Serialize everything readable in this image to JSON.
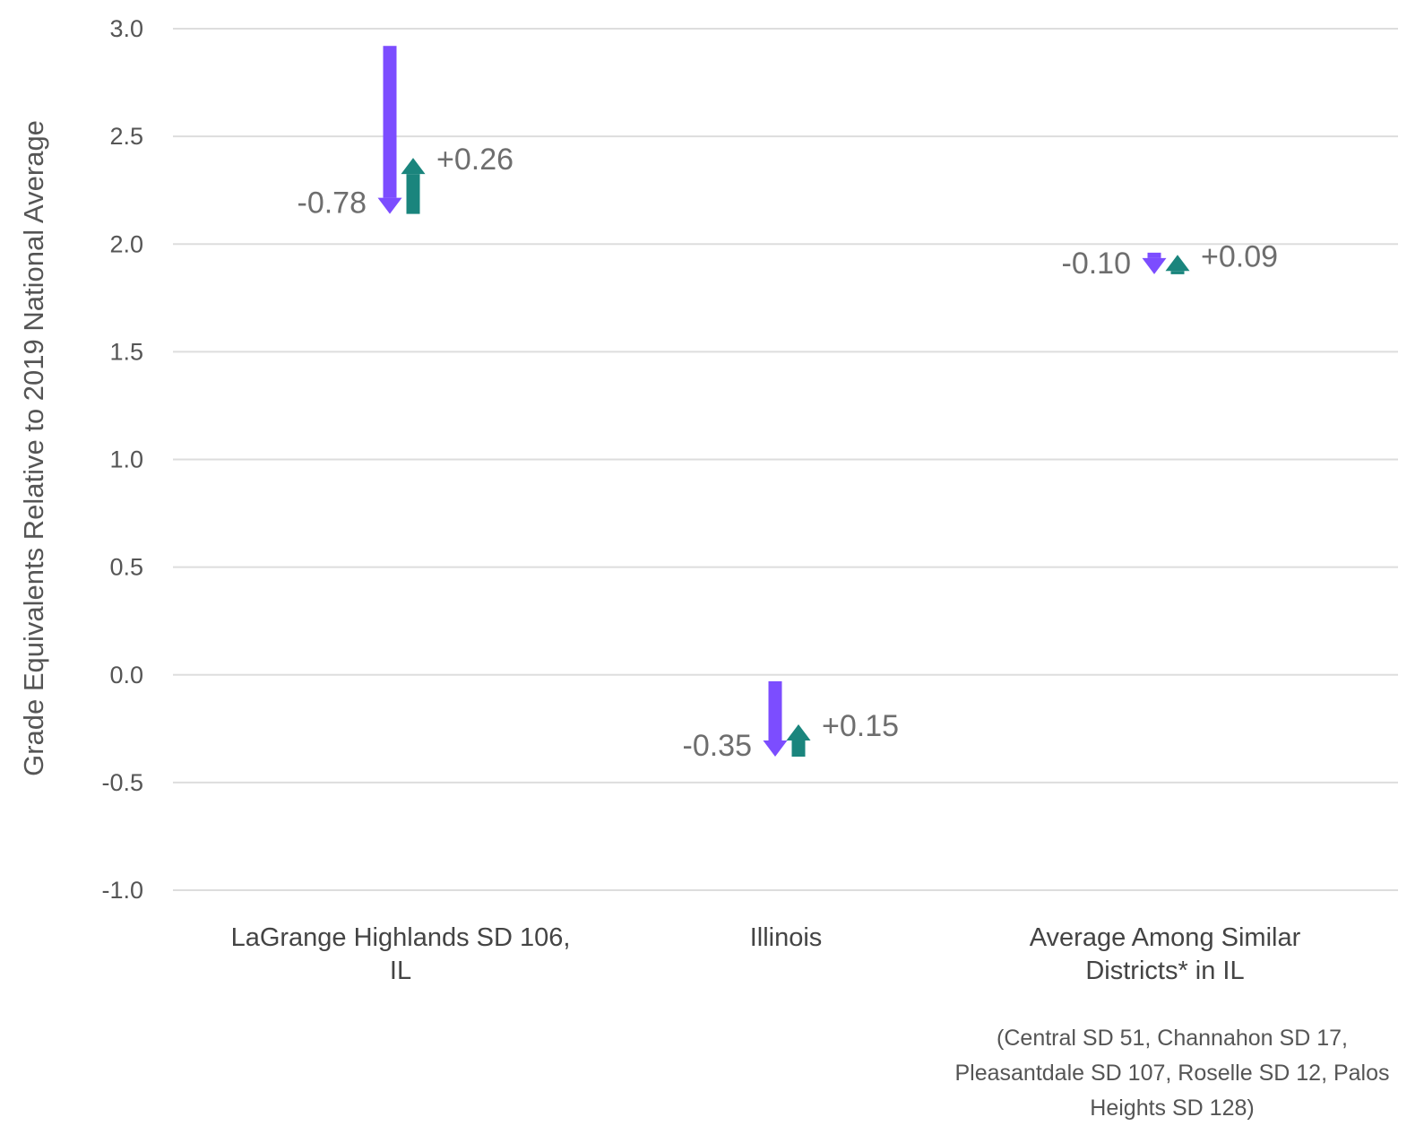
{
  "chart_data": {
    "type": "arrow",
    "title": "",
    "xlabel": "",
    "ylabel": "Grade Equivalents Relative to 2019 National Average",
    "ylim": [
      -1.0,
      3.0
    ],
    "yticks": [
      3.0,
      2.5,
      2.0,
      1.5,
      1.0,
      0.5,
      0.0,
      -0.5,
      -1.0
    ],
    "ytick_labels": [
      "3.0",
      "2.5",
      "2.0",
      "1.5",
      "1.0",
      "0.5",
      "0.0",
      "-0.5",
      "-1.0"
    ],
    "grid": true,
    "categories": [
      {
        "label_lines": [
          "LaGrange Highlands SD 106,",
          "IL"
        ],
        "decline": {
          "from": 2.92,
          "to": 2.14,
          "label": "-0.78"
        },
        "recovery": {
          "from": 2.14,
          "to": 2.4,
          "label": "+0.26"
        }
      },
      {
        "label_lines": [
          "Illinois"
        ],
        "decline": {
          "from": -0.03,
          "to": -0.38,
          "label": "-0.35"
        },
        "recovery": {
          "from": -0.38,
          "to": -0.23,
          "label": "+0.15"
        }
      },
      {
        "label_lines": [
          "Average Among Similar",
          "Districts* in IL"
        ],
        "decline": {
          "from": 1.96,
          "to": 1.86,
          "label": "-0.10"
        },
        "recovery": {
          "from": 1.86,
          "to": 1.95,
          "label": "+0.09"
        }
      }
    ],
    "footnote_lines": [
      "(Central SD 51, Channahon SD 17,",
      "Pleasantdale SD 107, Roselle SD 12, Palos",
      "Heights SD 128)"
    ]
  },
  "colors": {
    "decline": "#7c4dff",
    "recovery": "#1a857d",
    "grid": "#dddddd",
    "text": "#555555",
    "value_text": "#6e6e6e"
  }
}
